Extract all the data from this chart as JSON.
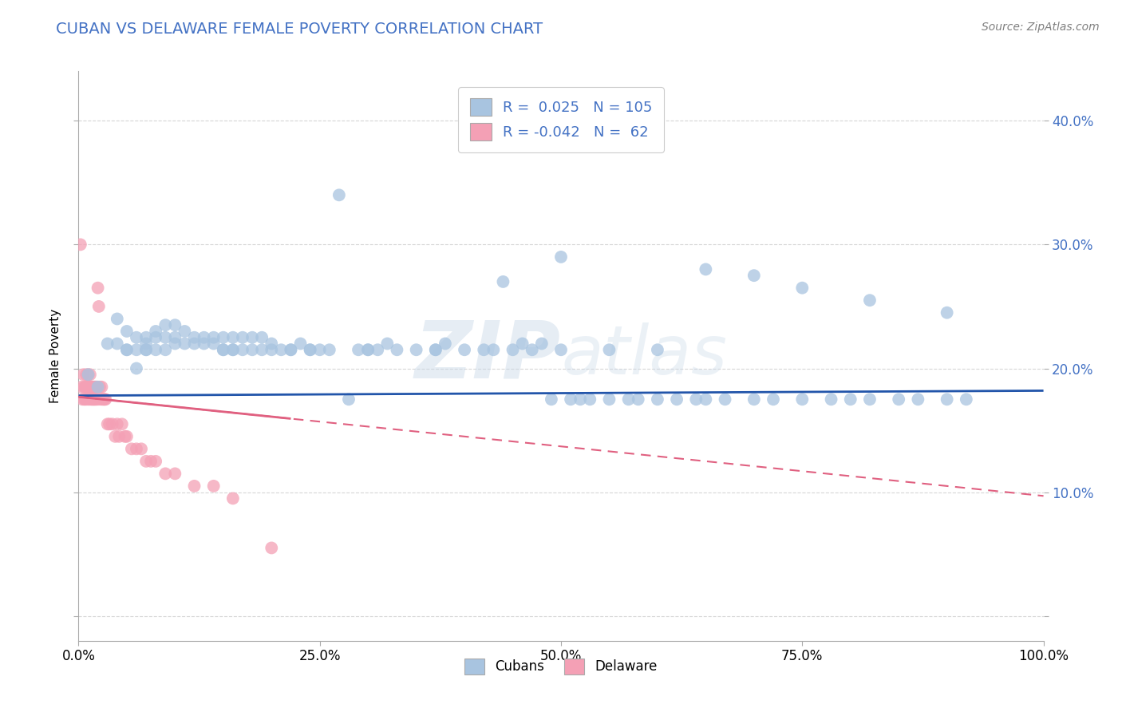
{
  "title": "CUBAN VS DELAWARE FEMALE POVERTY CORRELATION CHART",
  "source": "Source: ZipAtlas.com",
  "ylabel": "Female Poverty",
  "xlim": [
    0.0,
    1.0
  ],
  "ylim": [
    -0.02,
    0.44
  ],
  "yticks": [
    0.0,
    0.1,
    0.2,
    0.3,
    0.4
  ],
  "ytick_labels_left": [
    "",
    "",
    "",
    "",
    ""
  ],
  "ytick_labels_right": [
    "",
    "10.0%",
    "20.0%",
    "30.0%",
    "40.0%"
  ],
  "xticks": [
    0.0,
    0.25,
    0.5,
    0.75,
    1.0
  ],
  "xtick_labels": [
    "0.0%",
    "25.0%",
    "50.0%",
    "75.0%",
    "100.0%"
  ],
  "cuban_R": 0.025,
  "cuban_N": 105,
  "delaware_R": -0.042,
  "delaware_N": 62,
  "cuban_color": "#a8c4e0",
  "delaware_color": "#f4a0b5",
  "cuban_line_color": "#2255aa",
  "delaware_line_color": "#e06080",
  "title_color": "#4472c4",
  "title_fontsize": 14,
  "label_fontsize": 11,
  "legend_fontsize": 13,
  "source_fontsize": 10,
  "cuban_trend_y0": 0.178,
  "cuban_trend_y1": 0.182,
  "delaware_trend_y0": 0.177,
  "delaware_trend_y1": 0.097,
  "cuban_x": [
    0.01,
    0.02,
    0.03,
    0.04,
    0.04,
    0.05,
    0.05,
    0.05,
    0.06,
    0.06,
    0.06,
    0.07,
    0.07,
    0.07,
    0.07,
    0.08,
    0.08,
    0.08,
    0.09,
    0.09,
    0.09,
    0.1,
    0.1,
    0.1,
    0.11,
    0.11,
    0.12,
    0.12,
    0.13,
    0.13,
    0.14,
    0.14,
    0.15,
    0.15,
    0.16,
    0.16,
    0.17,
    0.17,
    0.18,
    0.18,
    0.19,
    0.19,
    0.2,
    0.2,
    0.21,
    0.22,
    0.23,
    0.24,
    0.25,
    0.26,
    0.27,
    0.28,
    0.29,
    0.3,
    0.31,
    0.32,
    0.33,
    0.35,
    0.37,
    0.38,
    0.4,
    0.42,
    0.44,
    0.45,
    0.46,
    0.47,
    0.48,
    0.49,
    0.5,
    0.51,
    0.52,
    0.53,
    0.55,
    0.57,
    0.58,
    0.6,
    0.62,
    0.64,
    0.65,
    0.67,
    0.7,
    0.72,
    0.75,
    0.78,
    0.8,
    0.82,
    0.85,
    0.87,
    0.9,
    0.92,
    0.15,
    0.16,
    0.22,
    0.24,
    0.3,
    0.37,
    0.43,
    0.5,
    0.55,
    0.6,
    0.65,
    0.7,
    0.75,
    0.82,
    0.9
  ],
  "cuban_y": [
    0.195,
    0.185,
    0.22,
    0.22,
    0.24,
    0.215,
    0.23,
    0.215,
    0.2,
    0.215,
    0.225,
    0.215,
    0.22,
    0.215,
    0.225,
    0.215,
    0.225,
    0.23,
    0.215,
    0.225,
    0.235,
    0.22,
    0.225,
    0.235,
    0.22,
    0.23,
    0.22,
    0.225,
    0.22,
    0.225,
    0.22,
    0.225,
    0.215,
    0.225,
    0.215,
    0.225,
    0.215,
    0.225,
    0.215,
    0.225,
    0.215,
    0.225,
    0.215,
    0.22,
    0.215,
    0.215,
    0.22,
    0.215,
    0.215,
    0.215,
    0.34,
    0.175,
    0.215,
    0.215,
    0.215,
    0.22,
    0.215,
    0.215,
    0.215,
    0.22,
    0.215,
    0.215,
    0.27,
    0.215,
    0.22,
    0.215,
    0.22,
    0.175,
    0.29,
    0.175,
    0.175,
    0.175,
    0.175,
    0.175,
    0.175,
    0.175,
    0.175,
    0.175,
    0.175,
    0.175,
    0.175,
    0.175,
    0.175,
    0.175,
    0.175,
    0.175,
    0.175,
    0.175,
    0.175,
    0.175,
    0.215,
    0.215,
    0.215,
    0.215,
    0.215,
    0.215,
    0.215,
    0.215,
    0.215,
    0.215,
    0.28,
    0.275,
    0.265,
    0.255,
    0.245
  ],
  "delaware_x": [
    0.002,
    0.003,
    0.004,
    0.005,
    0.006,
    0.006,
    0.007,
    0.007,
    0.008,
    0.008,
    0.009,
    0.009,
    0.01,
    0.01,
    0.011,
    0.011,
    0.012,
    0.012,
    0.013,
    0.013,
    0.014,
    0.014,
    0.015,
    0.015,
    0.016,
    0.016,
    0.017,
    0.017,
    0.018,
    0.018,
    0.019,
    0.02,
    0.02,
    0.021,
    0.022,
    0.023,
    0.024,
    0.025,
    0.026,
    0.027,
    0.028,
    0.03,
    0.032,
    0.035,
    0.038,
    0.04,
    0.042,
    0.045,
    0.048,
    0.05,
    0.055,
    0.06,
    0.065,
    0.07,
    0.075,
    0.08,
    0.09,
    0.1,
    0.12,
    0.14,
    0.16,
    0.2
  ],
  "delaware_y": [
    0.3,
    0.185,
    0.175,
    0.195,
    0.185,
    0.175,
    0.185,
    0.175,
    0.185,
    0.195,
    0.185,
    0.175,
    0.185,
    0.195,
    0.185,
    0.175,
    0.185,
    0.195,
    0.185,
    0.175,
    0.185,
    0.175,
    0.185,
    0.175,
    0.185,
    0.175,
    0.185,
    0.175,
    0.185,
    0.175,
    0.185,
    0.265,
    0.175,
    0.25,
    0.185,
    0.175,
    0.185,
    0.175,
    0.175,
    0.175,
    0.175,
    0.155,
    0.155,
    0.155,
    0.145,
    0.155,
    0.145,
    0.155,
    0.145,
    0.145,
    0.135,
    0.135,
    0.135,
    0.125,
    0.125,
    0.125,
    0.115,
    0.115,
    0.105,
    0.105,
    0.095,
    0.055
  ]
}
